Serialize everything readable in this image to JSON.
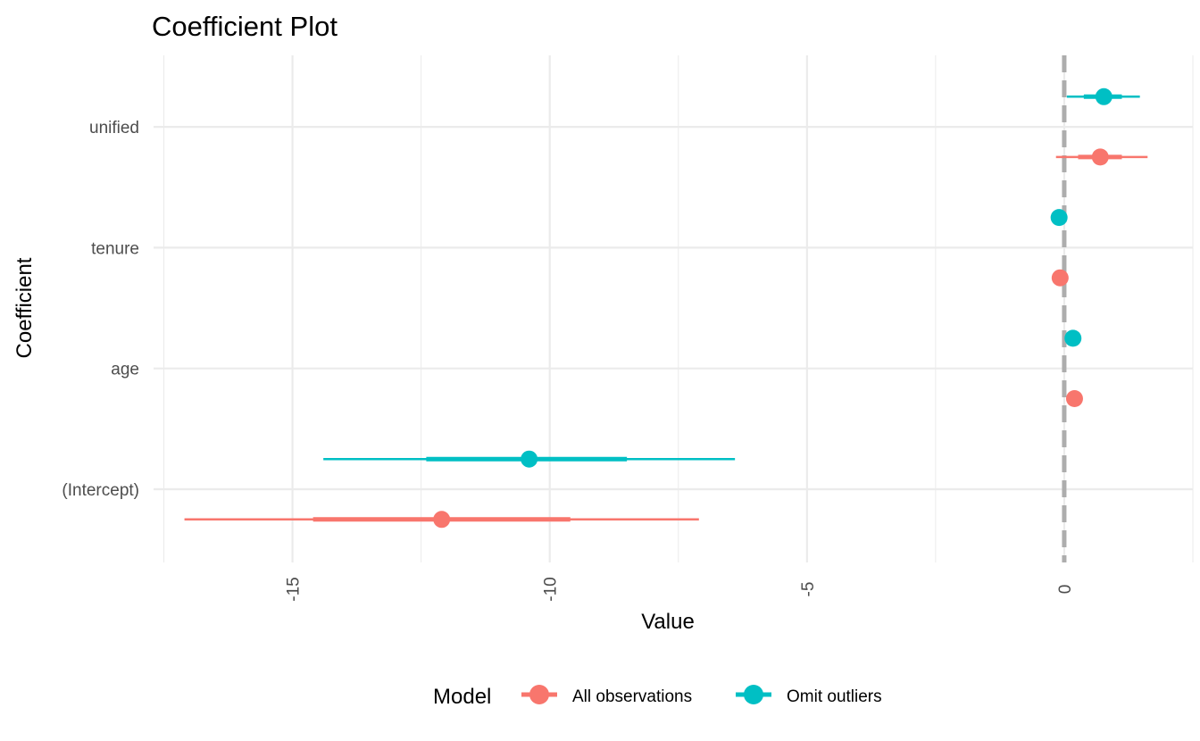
{
  "chart_data": {
    "type": "scatter",
    "subtype": "coefficient-plot",
    "title": "Coefficient Plot",
    "xlabel": "Value",
    "ylabel": "Coefficient",
    "xlim": [
      -17.7,
      2.5
    ],
    "x_ticks": [
      -15,
      -10,
      -5,
      0
    ],
    "x_tick_labels": [
      "-15",
      "-10",
      "-5",
      "0"
    ],
    "categories": [
      "(Intercept)",
      "age",
      "tenure",
      "unified"
    ],
    "reference_line": 0,
    "grid": true,
    "legend": {
      "title": "Model",
      "position": "bottom"
    },
    "series": [
      {
        "name": "All observations",
        "color": "#F8766D",
        "points": [
          {
            "coefficient": "(Intercept)",
            "estimate": -12.1,
            "inner": [
              -14.6,
              -9.6
            ],
            "outer": [
              -17.1,
              -7.1
            ]
          },
          {
            "coefficient": "age",
            "estimate": 0.2,
            "inner": [
              0.18,
              0.22
            ],
            "outer": [
              0.16,
              0.24
            ]
          },
          {
            "coefficient": "tenure",
            "estimate": -0.08,
            "inner": [
              -0.09,
              -0.07
            ],
            "outer": [
              -0.1,
              -0.06
            ]
          },
          {
            "coefficient": "unified",
            "estimate": 0.7,
            "inner": [
              0.27,
              1.12
            ],
            "outer": [
              -0.16,
              1.62
            ]
          }
        ]
      },
      {
        "name": "Omit outliers",
        "color": "#00BFC4",
        "points": [
          {
            "coefficient": "(Intercept)",
            "estimate": -10.4,
            "inner": [
              -12.4,
              -8.5
            ],
            "outer": [
              -14.4,
              -6.4
            ]
          },
          {
            "coefficient": "age",
            "estimate": 0.17,
            "inner": [
              0.15,
              0.19
            ],
            "outer": [
              0.13,
              0.21
            ]
          },
          {
            "coefficient": "tenure",
            "estimate": -0.1,
            "inner": [
              -0.11,
              -0.09
            ],
            "outer": [
              -0.12,
              -0.08
            ]
          },
          {
            "coefficient": "unified",
            "estimate": 0.77,
            "inner": [
              0.38,
              1.12
            ],
            "outer": [
              0.05,
              1.47
            ]
          }
        ]
      }
    ]
  }
}
